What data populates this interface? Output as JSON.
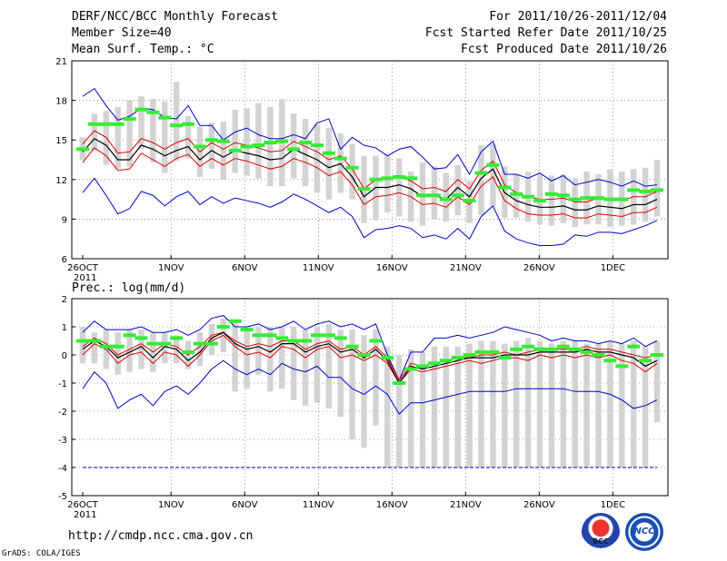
{
  "header": {
    "title": "DERF/NCC/BCC Monthly Forecast",
    "member_size": "Member Size=40",
    "variable": "Mean Surf. Temp.: °C",
    "period": "For 2011/10/26-2011/12/04",
    "refer_date": "Fcst Started Refer Date 2011/10/25",
    "produced_date": "Fcst Produced Date 2011/10/26"
  },
  "footer": {
    "url": "http://cmdp.ncc.cma.gov.cn",
    "credit": "GrADS: COLA/IGES",
    "logo_bcc": "BCC",
    "logo_ncc": "NCC"
  },
  "colors": {
    "box": "#d3d3d3",
    "member": "#33ee33",
    "mean": "#000000",
    "spread": "#dd0000",
    "extreme": "#0000cc"
  },
  "chart_data": [
    {
      "type": "line",
      "title": "Mean Surf. Temp.: °C",
      "x_labels": [
        "26OCT",
        "1NOV",
        "6NOV",
        "11NOV",
        "16NOV",
        "21NOV",
        "26NOV",
        "1DEC"
      ],
      "x_label_days": [
        0,
        6,
        11,
        16,
        21,
        26,
        31,
        36
      ],
      "year_label": "2011",
      "ylim": [
        6,
        21
      ],
      "yticks": [
        6,
        9,
        12,
        15,
        18,
        21
      ],
      "days": 40,
      "series": [
        {
          "name": "max",
          "values": [
            18.3,
            18.9,
            17.6,
            16.5,
            16.8,
            17.4,
            17.3,
            16.7,
            16.6,
            17.6,
            16.1,
            16.1,
            15.0,
            15.6,
            15.9,
            15.4,
            15.1,
            15.1,
            15.4,
            15.1,
            16.3,
            16.6,
            14.3,
            15.2,
            14.6,
            14.4,
            13.8,
            14.3,
            14.5,
            13.7,
            12.8,
            12.9,
            13.9,
            12.4,
            14.1,
            14.9,
            12.4,
            12.4,
            12.1,
            12.5,
            11.9,
            12.3,
            11.6,
            11.8,
            12.0,
            11.8,
            11.5,
            11.9,
            11.5,
            11.6
          ]
        },
        {
          "name": "upper",
          "values": [
            14.7,
            15.7,
            15.2,
            14.0,
            14.1,
            15.1,
            14.8,
            14.3,
            14.8,
            15.1,
            14.1,
            14.8,
            14.3,
            14.8,
            14.6,
            14.4,
            14.1,
            14.2,
            14.9,
            14.5,
            14.1,
            13.5,
            13.8,
            12.8,
            11.3,
            12.0,
            12.0,
            12.2,
            11.9,
            11.3,
            11.4,
            11.1,
            12.0,
            11.3,
            12.7,
            13.4,
            11.6,
            11.0,
            10.7,
            10.5,
            10.5,
            10.6,
            10.3,
            10.3,
            10.6,
            10.5,
            10.4,
            10.7,
            10.7,
            11.1
          ]
        },
        {
          "name": "mean",
          "values": [
            14.1,
            15.1,
            14.6,
            13.5,
            13.5,
            14.6,
            14.3,
            13.8,
            14.2,
            14.5,
            13.5,
            14.2,
            13.7,
            14.2,
            14.0,
            13.8,
            13.5,
            13.6,
            14.3,
            13.9,
            13.5,
            12.9,
            13.2,
            12.2,
            10.7,
            11.4,
            11.4,
            11.6,
            11.3,
            10.7,
            10.8,
            10.5,
            11.4,
            10.7,
            12.1,
            12.8,
            11.0,
            10.4,
            10.1,
            9.9,
            9.9,
            10.0,
            9.7,
            9.7,
            10.0,
            9.9,
            9.8,
            10.1,
            10.1,
            10.5
          ]
        },
        {
          "name": "lower",
          "values": [
            13.3,
            14.4,
            13.8,
            12.7,
            12.8,
            14.0,
            13.5,
            13.0,
            13.6,
            13.9,
            13.0,
            13.6,
            13.1,
            13.6,
            13.4,
            13.1,
            12.8,
            13.0,
            13.6,
            13.3,
            12.9,
            12.3,
            12.6,
            11.6,
            10.1,
            10.7,
            10.8,
            11.0,
            10.7,
            10.1,
            10.2,
            9.9,
            10.7,
            10.1,
            11.5,
            12.2,
            10.4,
            9.8,
            9.4,
            9.3,
            9.3,
            9.4,
            9.1,
            9.1,
            9.4,
            9.3,
            9.2,
            9.5,
            9.5,
            9.9
          ]
        },
        {
          "name": "min",
          "values": [
            11.0,
            12.1,
            10.8,
            9.4,
            9.8,
            11.1,
            10.8,
            10.0,
            10.7,
            11.1,
            10.1,
            10.7,
            10.2,
            10.6,
            10.4,
            10.2,
            9.9,
            10.3,
            10.9,
            10.5,
            10.0,
            9.5,
            9.9,
            9.2,
            7.6,
            8.2,
            8.3,
            8.5,
            8.3,
            7.6,
            7.8,
            7.5,
            8.3,
            7.5,
            9.2,
            10.0,
            8.1,
            7.5,
            7.2,
            7.0,
            7.0,
            7.1,
            7.8,
            7.7,
            8.0,
            8.0,
            7.9,
            8.2,
            8.5,
            8.9
          ]
        },
        {
          "name": "member",
          "values": [
            14.3,
            16.2,
            16.2,
            16.2,
            16.6,
            17.3,
            17.1,
            16.7,
            16.1,
            16.2,
            14.5,
            15.0,
            14.9,
            14.2,
            14.5,
            14.6,
            14.8,
            14.9,
            14.3,
            14.8,
            14.6,
            14.0,
            13.6,
            12.9,
            11.3,
            12.0,
            12.1,
            12.2,
            12.1,
            10.8,
            10.8,
            10.5,
            10.8,
            10.4,
            12.5,
            13.1,
            11.4,
            10.9,
            10.7,
            10.4,
            10.9,
            10.8,
            10.5,
            10.6,
            10.6,
            10.5,
            10.5,
            11.2,
            11.1,
            11.2
          ]
        },
        {
          "name": "box_top",
          "values": [
            15.2,
            17.0,
            17.2,
            17.5,
            18.0,
            18.3,
            18.1,
            17.9,
            19.4,
            16.8,
            16.0,
            16.3,
            16.4,
            17.3,
            17.4,
            17.8,
            17.5,
            18.1,
            17.0,
            16.6,
            16.2,
            15.9,
            15.5,
            14.7,
            13.8,
            13.8,
            13.9,
            13.6,
            12.6,
            13.3,
            13.0,
            12.5,
            13.1,
            11.9,
            14.6,
            14.7,
            13.0,
            12.4,
            12.6,
            12.4,
            12.3,
            12.4,
            12.1,
            12.6,
            12.4,
            12.8,
            12.6,
            12.8,
            12.9,
            13.5
          ]
        },
        {
          "name": "box_bottom",
          "values": [
            13.5,
            14.2,
            13.1,
            12.8,
            13.0,
            14.3,
            13.3,
            12.5,
            13.4,
            13.6,
            12.2,
            12.8,
            12.0,
            12.5,
            12.3,
            12.1,
            11.5,
            11.5,
            12.1,
            11.5,
            11.0,
            10.5,
            11.0,
            10.5,
            8.7,
            8.9,
            9.5,
            9.2,
            8.8,
            8.5,
            9.0,
            8.8,
            9.3,
            8.7,
            9.3,
            10.0,
            9.1,
            9.1,
            8.8,
            8.6,
            8.5,
            8.7,
            8.4,
            8.6,
            8.6,
            8.4,
            8.5,
            8.6,
            8.8,
            9.2
          ]
        }
      ]
    },
    {
      "type": "line",
      "title": "Prec.: log(mm/d)",
      "x_labels": [
        "26OCT",
        "1NOV",
        "6NOV",
        "11NOV",
        "16NOV",
        "21NOV",
        "26NOV",
        "1DEC"
      ],
      "x_label_days": [
        0,
        6,
        11,
        16,
        21,
        26,
        31,
        36
      ],
      "year_label": "2011",
      "ylim": [
        -5,
        2
      ],
      "yticks": [
        -5,
        -4,
        -3,
        -2,
        -1,
        0,
        1,
        2
      ],
      "days": 40,
      "series": [
        {
          "name": "max",
          "values": [
            0.8,
            1.2,
            0.9,
            0.9,
            0.9,
            1.0,
            0.8,
            0.8,
            0.9,
            0.7,
            0.9,
            1.3,
            1.4,
            1.0,
            1.0,
            1.1,
            0.9,
            1.0,
            1.2,
            0.9,
            1.1,
            1.2,
            1.0,
            1.1,
            0.9,
            1.1,
            0.0,
            -0.9,
            0.1,
            0.1,
            0.6,
            0.6,
            0.7,
            0.6,
            0.7,
            0.8,
            1.0,
            0.9,
            0.8,
            0.7,
            0.5,
            0.6,
            0.5,
            0.5,
            0.4,
            0.5,
            0.4,
            0.6,
            0.3,
            0.5
          ]
        },
        {
          "name": "upper",
          "values": [
            0.3,
            0.6,
            0.4,
            0.0,
            0.2,
            0.4,
            0.1,
            0.4,
            0.3,
            0.0,
            0.3,
            0.7,
            0.8,
            0.5,
            0.3,
            0.4,
            0.3,
            0.5,
            0.5,
            0.2,
            0.4,
            0.5,
            0.2,
            0.3,
            0.0,
            0.3,
            -0.1,
            -0.9,
            -0.3,
            -0.4,
            -0.3,
            -0.2,
            -0.1,
            -0.1,
            0.0,
            0.0,
            0.1,
            0.0,
            0.1,
            0.2,
            0.2,
            0.2,
            0.2,
            0.3,
            0.2,
            0.2,
            0.1,
            0.0,
            -0.1,
            0.0
          ]
        },
        {
          "name": "mean",
          "values": [
            0.2,
            0.5,
            0.3,
            -0.1,
            0.1,
            0.3,
            -0.1,
            0.3,
            0.2,
            -0.2,
            0.1,
            0.6,
            0.8,
            0.4,
            0.2,
            0.3,
            0.1,
            0.4,
            0.4,
            0.1,
            0.3,
            0.4,
            0.1,
            0.2,
            -0.1,
            0.2,
            -0.2,
            -1.0,
            -0.4,
            -0.5,
            -0.4,
            -0.3,
            -0.2,
            -0.1,
            -0.1,
            -0.1,
            0.0,
            0.0,
            0.0,
            0.1,
            0.1,
            0.1,
            0.1,
            0.2,
            0.1,
            0.1,
            0.0,
            -0.1,
            -0.4,
            -0.2
          ]
        },
        {
          "name": "lower",
          "values": [
            0.0,
            0.4,
            0.2,
            -0.3,
            0.0,
            0.1,
            -0.3,
            0.1,
            0.0,
            -0.4,
            0.0,
            0.5,
            0.7,
            0.3,
            0.0,
            0.1,
            -0.1,
            0.3,
            0.2,
            -0.1,
            0.2,
            0.3,
            -0.1,
            0.0,
            -0.2,
            0.0,
            -0.3,
            -1.0,
            -0.5,
            -0.6,
            -0.5,
            -0.4,
            -0.3,
            -0.2,
            -0.3,
            -0.2,
            -0.1,
            -0.1,
            -0.2,
            0.0,
            -0.1,
            0.0,
            -0.1,
            0.0,
            -0.1,
            0.0,
            -0.2,
            -0.3,
            -0.6,
            -0.3
          ]
        },
        {
          "name": "min",
          "values": [
            -1.2,
            -0.6,
            -1.0,
            -1.9,
            -1.6,
            -1.4,
            -1.8,
            -1.3,
            -1.1,
            -1.4,
            -1.0,
            -0.5,
            -0.2,
            -0.5,
            -0.7,
            -0.5,
            -0.7,
            -0.3,
            -0.5,
            -0.6,
            -0.4,
            -0.8,
            -0.8,
            -1.2,
            -1.4,
            -1.1,
            -1.4,
            -2.1,
            -1.7,
            -1.7,
            -1.6,
            -1.5,
            -1.4,
            -1.3,
            -1.3,
            -1.3,
            -1.3,
            -1.2,
            -1.2,
            -1.2,
            -1.2,
            -1.2,
            -1.3,
            -1.3,
            -1.3,
            -1.4,
            -1.6,
            -1.9,
            -1.8,
            -1.6
          ]
        },
        {
          "name": "member",
          "values": [
            0.5,
            0.5,
            0.3,
            0.3,
            0.7,
            0.6,
            0.4,
            0.4,
            0.6,
            0.1,
            0.4,
            0.4,
            1.0,
            1.2,
            0.9,
            0.7,
            0.7,
            0.6,
            0.5,
            0.5,
            0.7,
            0.7,
            0.6,
            0.3,
            0.0,
            0.5,
            -0.1,
            -1.0,
            -0.5,
            -0.4,
            -0.3,
            -0.2,
            -0.1,
            0.0,
            0.1,
            0.1,
            -0.1,
            0.2,
            0.3,
            0.2,
            0.2,
            0.3,
            0.2,
            0.1,
            0.0,
            -0.2,
            -0.4,
            0.3,
            -0.2,
            0.0
          ]
        },
        {
          "name": "box_top",
          "values": [
            1.0,
            0.8,
            0.9,
            0.8,
            0.9,
            0.9,
            0.8,
            0.8,
            0.7,
            0.5,
            0.8,
            1.1,
            1.3,
            1.2,
            1.0,
            1.0,
            1.0,
            1.0,
            1.0,
            0.9,
            1.0,
            1.1,
            0.9,
            0.9,
            0.7,
            0.9,
            0.3,
            0.0,
            0.2,
            0.1,
            0.3,
            0.3,
            0.3,
            0.4,
            0.5,
            0.5,
            0.4,
            0.5,
            0.6,
            0.5,
            0.4,
            0.5,
            0.5,
            0.4,
            0.4,
            0.5,
            0.4,
            0.5,
            0.3,
            0.5
          ]
        },
        {
          "name": "box_bottom",
          "values": [
            -0.3,
            -0.3,
            -0.5,
            -0.7,
            -0.6,
            -0.5,
            -0.6,
            -0.3,
            -0.3,
            -0.5,
            -0.4,
            0.0,
            0.1,
            -1.3,
            -1.2,
            -0.7,
            -1.3,
            -1.2,
            -1.6,
            -1.8,
            -1.7,
            -1.9,
            -2.2,
            -3.0,
            -3.3,
            -2.5,
            -4.0,
            -4.0,
            -4.0,
            -4.0,
            -4.0,
            -4.0,
            -4.0,
            -4.0,
            -4.0,
            -4.0,
            -4.0,
            -4.0,
            -4.0,
            -4.0,
            -4.0,
            -4.0,
            -4.0,
            -4.0,
            -4.0,
            -4.0,
            -4.0,
            -4.0,
            -4.0,
            -2.4
          ]
        },
        {
          "name": "floor",
          "values": [
            -4,
            -4
          ]
        }
      ]
    }
  ]
}
